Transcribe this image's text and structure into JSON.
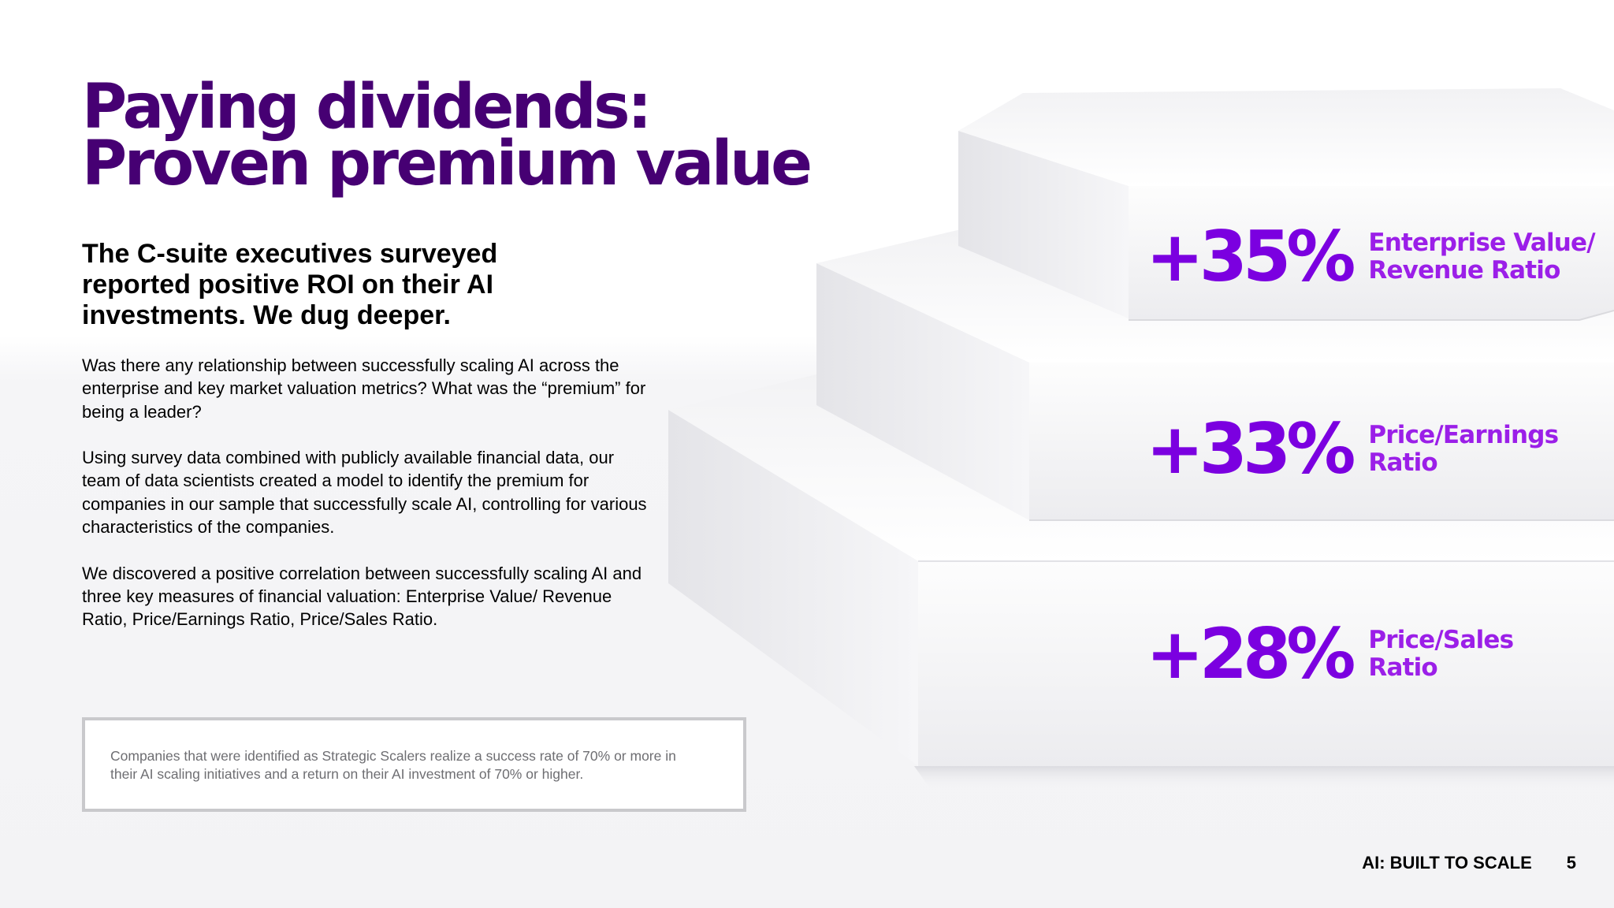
{
  "title": {
    "line1": "Paying dividends:",
    "line2": "Proven premium value"
  },
  "subhead": "The C-suite executives surveyed reported positive ROI on their AI investments. We dug deeper.",
  "body": {
    "paragraphs": [
      "Was there any relationship between successfully scaling AI across the enterprise and key market valuation metrics? What was the “premium” for being a leader?",
      "Using survey data combined with publicly available financial data, our team of data scientists created a model to identify the premium for companies in our sample that successfully scale AI, controlling for various characteristics of the companies.",
      "We discovered a positive correlation between successfully scaling AI and three key measures of financial valuation: Enterprise Value/ Revenue Ratio, Price/Earnings Ratio, Price/Sales Ratio."
    ]
  },
  "note": "Companies that were identified as Strategic Scalers realize a success rate of 70% or more in their AI scaling initiatives and a return on their AI investment of 70% or higher.",
  "stats": [
    {
      "value": "+35%",
      "label_line1": "Enterprise Value/",
      "label_line2": "Revenue Ratio"
    },
    {
      "value": "+33%",
      "label_line1": "Price/Earnings",
      "label_line2": "Ratio"
    },
    {
      "value": "+28%",
      "label_line1": "Price/Sales",
      "label_line2": "Ratio"
    }
  ],
  "footer": {
    "report_title": "AI: BUILT TO SCALE",
    "page_number": "5"
  },
  "colors": {
    "title": "#460073",
    "stat_value": "#7b00e0",
    "stat_label": "#9b1fe8"
  }
}
